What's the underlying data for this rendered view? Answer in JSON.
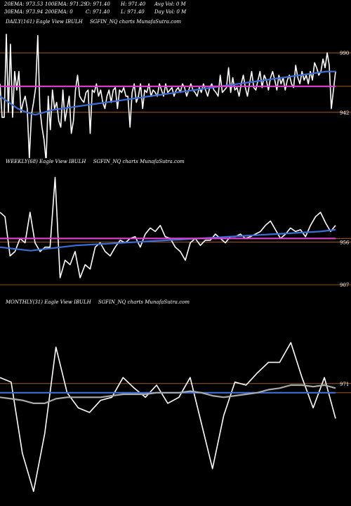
{
  "header": {
    "stats": [
      {
        "label": "20EMA: 973.53"
      },
      {
        "label": "100EMA: 971.29"
      },
      {
        "label": "O: 971.40"
      },
      {
        "label": "H: 971.40"
      },
      {
        "label": "Avg Vol: 0  M"
      },
      {
        "label": "30EMA: 973.94"
      },
      {
        "label": "200EMA: 0"
      },
      {
        "label": "C: 971.40"
      },
      {
        "label": "L: 971.40"
      },
      {
        "label": "Day Vol: 0  M"
      }
    ]
  },
  "panels": [
    {
      "period": "DAILY(161) Eagle  View  IBULH",
      "source": "SGFIN_NQ charts MunafaSutra.com"
    },
    {
      "period": "WEEKLY(68) Eagle  View  IBULH",
      "source": "SGFIN_NQ charts MunafaSutra.com"
    },
    {
      "period": "MONTHLY(31) Eagle  View  IBULH",
      "source": "SGFIN_NQ charts MunafaSutra.com"
    }
  ],
  "colors": {
    "background": "#000000",
    "price": "#ffffff",
    "ema_blue": "#3b6fd6",
    "ema_magenta": "#e040d0",
    "ema_gray": "#aaaaaa",
    "level_line": "#b86a2a"
  },
  "chart_data": [
    {
      "type": "line",
      "title": "DAILY(161) Eagle  View  IBULH",
      "ylim": [
        905,
        1010
      ],
      "yticks": [
        990,
        942
      ],
      "levels": [
        990,
        942,
        963
      ],
      "series": [
        {
          "role": "price",
          "values": [
            965,
            938,
            938,
            1005,
            942,
            997,
            938,
            975,
            960,
            975,
            942,
            950,
            955,
            945,
            905,
            940,
            950,
            962,
            1004,
            945,
            930,
            920,
            902,
            955,
            928,
            960,
            945,
            950,
            935,
            930,
            960,
            935,
            945,
            955,
            925,
            935,
            960,
            972,
            955,
            952,
            950,
            958,
            960,
            925,
            960,
            958,
            965,
            955,
            960,
            950,
            945,
            955,
            960,
            950,
            960,
            962,
            945,
            960,
            958,
            962,
            955,
            955,
            930,
            958,
            965,
            950,
            955,
            965,
            945,
            960,
            958,
            965,
            955,
            960,
            958,
            955,
            965,
            960,
            955,
            965,
            958,
            960,
            962,
            955,
            960,
            962,
            958,
            965,
            962,
            955,
            960,
            965,
            960,
            958,
            955,
            962,
            958,
            965,
            960,
            955,
            962,
            965,
            960,
            958,
            955,
            972,
            958,
            960,
            962,
            978,
            958,
            970,
            960,
            962,
            955,
            965,
            972,
            962,
            955,
            965,
            975,
            962,
            960,
            968,
            975,
            962,
            972,
            968,
            960,
            970,
            975,
            968,
            960,
            972,
            965,
            970,
            960,
            968,
            972,
            965,
            962,
            980,
            970,
            965,
            975,
            968,
            972,
            965,
            975,
            968,
            982,
            978,
            972,
            975,
            985,
            978,
            990,
            980,
            945,
            960,
            975
          ]
        },
        {
          "role": "ema",
          "color": "#3b6fd6",
          "values": [
            955,
            950,
            945,
            942,
            940,
            942,
            944,
            945,
            946,
            947,
            948,
            949,
            950,
            951,
            952,
            953,
            954,
            955,
            956,
            957,
            958,
            959,
            960,
            961,
            962,
            963,
            964,
            965,
            966,
            967,
            968,
            969,
            970,
            971,
            972,
            973,
            974,
            975,
            975
          ]
        },
        {
          "role": "ema",
          "color": "#e040d0",
          "values": [
            963,
            963,
            963,
            963,
            963,
            963,
            963,
            963,
            963,
            963,
            963,
            963,
            963,
            963,
            963,
            963,
            963,
            963,
            963,
            963,
            963,
            963,
            963,
            963,
            963,
            963,
            963,
            963,
            963,
            963,
            963,
            963,
            963,
            963,
            963,
            963,
            963,
            963,
            963
          ]
        }
      ]
    },
    {
      "type": "line",
      "title": "WEEKLY(68) Eagle  View  IBULH",
      "ylim": [
        895,
        1040
      ],
      "yticks": [
        956,
        907
      ],
      "levels": [
        956,
        907,
        960
      ],
      "series": [
        {
          "role": "price",
          "values": [
            990,
            985,
            940,
            945,
            960,
            955,
            990,
            955,
            945,
            950,
            950,
            1030,
            915,
            935,
            930,
            945,
            915,
            930,
            925,
            950,
            955,
            945,
            940,
            950,
            958,
            955,
            960,
            962,
            950,
            965,
            972,
            968,
            975,
            962,
            960,
            950,
            945,
            935,
            955,
            960,
            952,
            958,
            958,
            965,
            960,
            955,
            962,
            962,
            965,
            960,
            962,
            965,
            968,
            975,
            980,
            970,
            960,
            965,
            972,
            968,
            970,
            962,
            975,
            985,
            990,
            978,
            968,
            975
          ]
        },
        {
          "role": "ema",
          "color": "#3b6fd6",
          "values": [
            950,
            948,
            946,
            948,
            950,
            952,
            953,
            954,
            955,
            956,
            957,
            958,
            959,
            960,
            961,
            962,
            963,
            964,
            965,
            966,
            967,
            968,
            970
          ]
        },
        {
          "role": "ema",
          "color": "#e040d0",
          "values": [
            960,
            960,
            960,
            960,
            960,
            960,
            960,
            960,
            960,
            960,
            960,
            960,
            960,
            960,
            960,
            960,
            960,
            960,
            960,
            960,
            960,
            960,
            960
          ]
        }
      ]
    },
    {
      "type": "line",
      "title": "MONTHLY(31) Eagle  View  IBULH",
      "ylim": [
        895,
        1020
      ],
      "yticks": [
        971
      ],
      "levels": [
        971,
        965
      ],
      "series": [
        {
          "role": "price",
          "values": [
            975,
            972,
            925,
            900,
            938,
            995,
            965,
            955,
            952,
            960,
            962,
            975,
            968,
            962,
            970,
            958,
            962,
            975,
            945,
            915,
            950,
            972,
            970,
            978,
            985,
            985,
            998,
            975,
            955,
            975,
            948
          ]
        },
        {
          "role": "ema",
          "color": "#3b6fd6",
          "values": [
            965,
            965,
            965,
            965,
            965,
            965,
            965,
            965,
            965,
            965,
            965,
            965,
            965,
            965,
            965,
            965,
            965,
            965,
            965,
            965,
            965,
            965,
            965,
            965,
            965,
            965,
            965,
            965,
            965,
            965,
            965
          ]
        },
        {
          "role": "ema",
          "color": "#aaaaaa",
          "values": [
            962,
            961,
            960,
            958,
            958,
            961,
            962,
            962,
            962,
            962,
            963,
            964,
            964,
            964,
            965,
            965,
            965,
            966,
            965,
            963,
            962,
            963,
            964,
            965,
            967,
            968,
            970,
            970,
            969,
            970,
            968
          ]
        }
      ]
    }
  ]
}
